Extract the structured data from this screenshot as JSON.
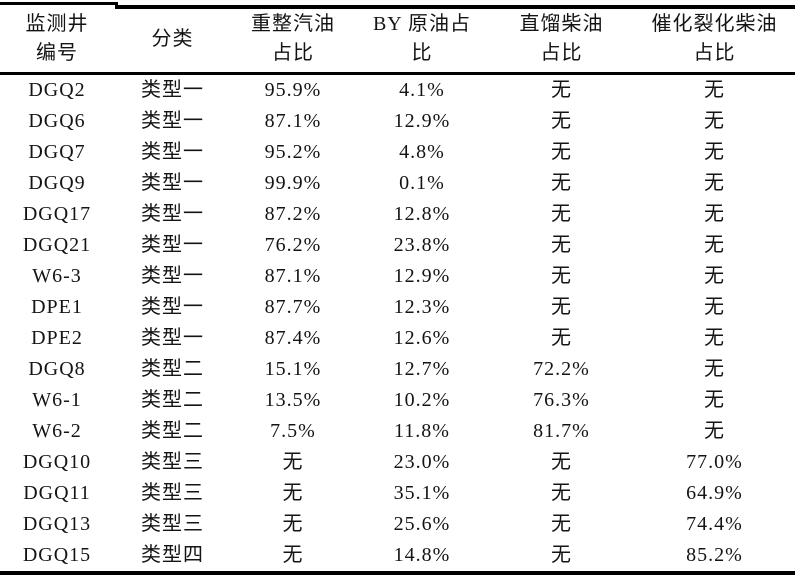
{
  "table": {
    "columns": [
      {
        "id": "well-id",
        "lines": [
          "监测井",
          "编号"
        ]
      },
      {
        "id": "category",
        "lines": [
          "分类"
        ]
      },
      {
        "id": "reformed-gasoline",
        "lines": [
          "重整汽油",
          "占比"
        ]
      },
      {
        "id": "by-crude-oil",
        "lines": [
          "BY 原油占",
          "比"
        ]
      },
      {
        "id": "straight-run-diesel",
        "lines": [
          "直馏柴油",
          "占比"
        ]
      },
      {
        "id": "fcc-diesel",
        "lines": [
          "催化裂化柴油",
          "占比"
        ]
      }
    ],
    "rows": [
      [
        "DGQ2",
        "类型一",
        "95.9%",
        "4.1%",
        "无",
        "无"
      ],
      [
        "DGQ6",
        "类型一",
        "87.1%",
        "12.9%",
        "无",
        "无"
      ],
      [
        "DGQ7",
        "类型一",
        "95.2%",
        "4.8%",
        "无",
        "无"
      ],
      [
        "DGQ9",
        "类型一",
        "99.9%",
        "0.1%",
        "无",
        "无"
      ],
      [
        "DGQ17",
        "类型一",
        "87.2%",
        "12.8%",
        "无",
        "无"
      ],
      [
        "DGQ21",
        "类型一",
        "76.2%",
        "23.8%",
        "无",
        "无"
      ],
      [
        "W6-3",
        "类型一",
        "87.1%",
        "12.9%",
        "无",
        "无"
      ],
      [
        "DPE1",
        "类型一",
        "87.7%",
        "12.3%",
        "无",
        "无"
      ],
      [
        "DPE2",
        "类型一",
        "87.4%",
        "12.6%",
        "无",
        "无"
      ],
      [
        "DGQ8",
        "类型二",
        "15.1%",
        "12.7%",
        "72.2%",
        "无"
      ],
      [
        "W6-1",
        "类型二",
        "13.5%",
        "10.2%",
        "76.3%",
        "无"
      ],
      [
        "W6-2",
        "类型二",
        "7.5%",
        "11.8%",
        "81.7%",
        "无"
      ],
      [
        "DGQ10",
        "类型三",
        "无",
        "23.0%",
        "无",
        "77.0%"
      ],
      [
        "DGQ11",
        "类型三",
        "无",
        "35.1%",
        "无",
        "64.9%"
      ],
      [
        "DGQ13",
        "类型三",
        "无",
        "25.6%",
        "无",
        "74.4%"
      ],
      [
        "DGQ15",
        "类型四",
        "无",
        "14.8%",
        "无",
        "85.2%"
      ]
    ]
  },
  "colors": {
    "text": "#141414",
    "rule": "#000000",
    "background": "#ffffff"
  }
}
